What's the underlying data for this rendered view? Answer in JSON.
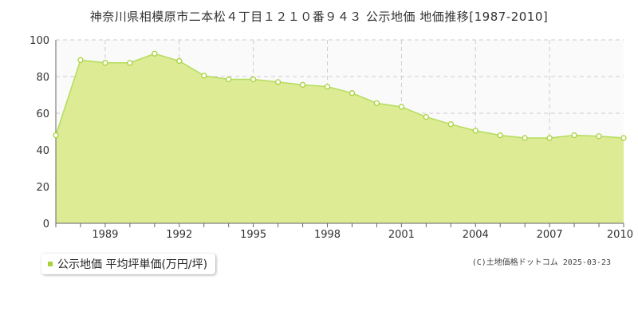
{
  "colors": {
    "fill": "#dceb94",
    "line": "#b5dc5c",
    "marker_fill": "#ffffff",
    "marker_stroke": "#a8d23c",
    "grid": "#cccccc",
    "plot_background": "#fafafa"
  },
  "legend": {
    "label": "公示地価 平均坪単価(万円/坪)"
  },
  "credit": "(C)土地価格ドットコム 2025-03-23",
  "chart_data": {
    "type": "area",
    "title": "神奈川県相模原市二本松４丁目１２１０番９４３ 公示地価 地価推移[1987-2010]",
    "xlabel": "",
    "ylabel": "",
    "xlim": [
      1987,
      2010
    ],
    "ylim": [
      0,
      100
    ],
    "x_ticks": [
      1989,
      1992,
      1995,
      1998,
      2001,
      2004,
      2007,
      2010
    ],
    "y_ticks": [
      0,
      20,
      40,
      60,
      80,
      100
    ],
    "grid": true,
    "legend_position": "bottom-left",
    "series": [
      {
        "name": "公示地価 平均坪単価(万円/坪)",
        "x": [
          1987,
          1988,
          1989,
          1990,
          1991,
          1992,
          1993,
          1994,
          1995,
          1996,
          1997,
          1998,
          1999,
          2000,
          2001,
          2002,
          2003,
          2004,
          2005,
          2006,
          2007,
          2008,
          2009,
          2010
        ],
        "values": [
          48,
          89,
          87.5,
          87.5,
          92.5,
          88.5,
          80.5,
          78.5,
          78.5,
          77,
          75.5,
          74.5,
          71,
          65.5,
          63.5,
          58,
          54,
          50.5,
          48,
          46.5,
          46.5,
          48,
          47.5,
          46.5
        ]
      }
    ]
  }
}
